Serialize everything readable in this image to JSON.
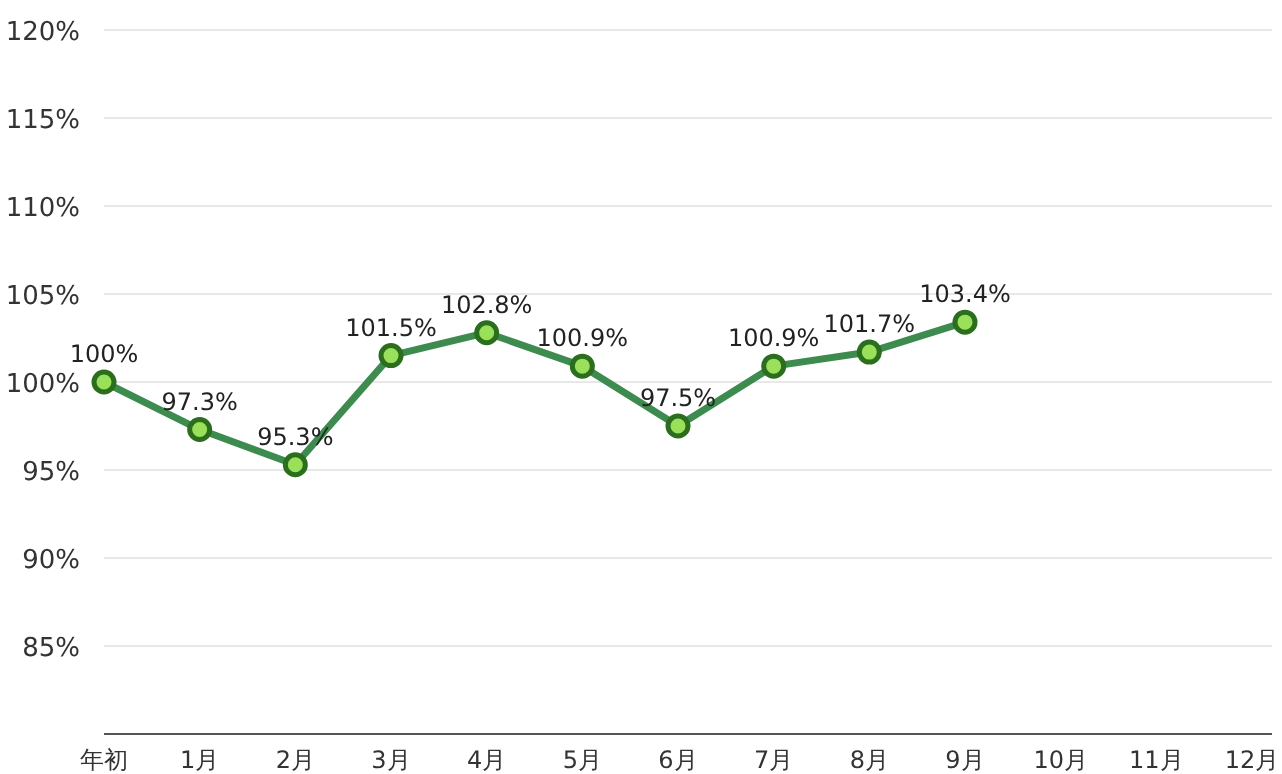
{
  "chart_data": {
    "type": "line",
    "categories": [
      "年初",
      "1月",
      "2月",
      "3月",
      "4月",
      "5月",
      "6月",
      "7月",
      "8月",
      "9月",
      "10月",
      "11月",
      "12月"
    ],
    "series": [
      {
        "color": "#3d8b4f",
        "values": [
          100,
          97.3,
          95.3,
          101.5,
          102.8,
          100.9,
          97.5,
          100.9,
          101.7,
          103.4,
          null,
          null,
          null
        ],
        "value_labels": [
          "100%",
          "97.3%",
          "95.3%",
          "101.5%",
          "102.8%",
          "100.9%",
          "97.5%",
          "100.9%",
          "101.7%",
          "103.4%",
          null,
          null,
          null
        ]
      }
    ],
    "ylim": [
      80,
      120
    ],
    "yticks": [
      {
        "value": 85,
        "label": "85%"
      },
      {
        "value": 90,
        "label": "90%"
      },
      {
        "value": 95,
        "label": "95%"
      },
      {
        "value": 100,
        "label": "100%"
      },
      {
        "value": 105,
        "label": "105%"
      },
      {
        "value": 110,
        "label": "110%"
      },
      {
        "value": 115,
        "label": "115%"
      },
      {
        "value": 120,
        "label": "120%"
      }
    ],
    "grid": "y",
    "marker": "circle",
    "line_style": "solid"
  }
}
